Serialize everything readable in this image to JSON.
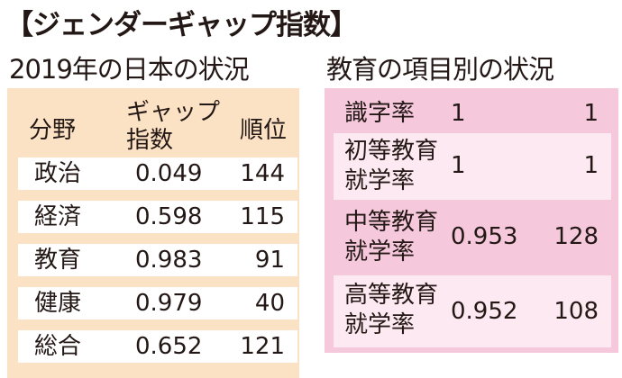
{
  "title": "【ジェンダーギャップ指数】",
  "left": {
    "heading": "2019年の日本の状況",
    "headers": {
      "category": "分野",
      "index_line1": "ギャップ",
      "index_line2": "指数",
      "rank": "順位"
    },
    "rows": [
      {
        "category": "政治",
        "index": "0.049",
        "rank": "144"
      },
      {
        "category": "経済",
        "index": "0.598",
        "rank": "115"
      },
      {
        "category": "教育",
        "index": "0.983",
        "rank": "91"
      },
      {
        "category": "健康",
        "index": "0.979",
        "rank": "40"
      },
      {
        "category": "総合",
        "index": "0.652",
        "rank": "121"
      }
    ]
  },
  "right": {
    "heading": "教育の項目別の状況",
    "rows": [
      {
        "label_line1": "識字率",
        "label_line2": "",
        "index": "1",
        "rank": "1"
      },
      {
        "label_line1": "初等教育",
        "label_line2": "就学率",
        "index": "1",
        "rank": "1"
      },
      {
        "label_line1": "中等教育",
        "label_line2": "就学率",
        "index": "0.953",
        "rank": "128"
      },
      {
        "label_line1": "高等教育",
        "label_line2": "就学率",
        "index": "0.952",
        "rank": "108"
      }
    ]
  },
  "colors": {
    "left_panel": "#fce2c4",
    "right_panel": "#f5c8dc",
    "right_row": "#fde9f1"
  }
}
